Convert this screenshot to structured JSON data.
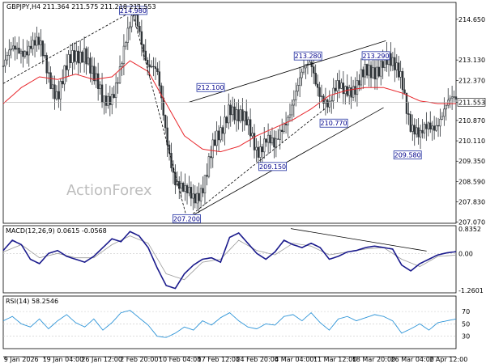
{
  "header": {
    "symbol_line": "GBPJPY,H4  211.364 211.575 211.218 211.553"
  },
  "watermark": "ActionForex",
  "colors": {
    "price": "#2f3438",
    "ma": "#e8262b",
    "macd": "#1a1a8c",
    "signal": "#9a9a9a",
    "rsi": "#2f95d8",
    "box_border": "#1f2fa0",
    "box_fill": "#ffffff",
    "current_bg": "#ffffff"
  },
  "chart_data": [
    {
      "type": "candlestick",
      "title": "GBPJPY,H4",
      "ohlc_last": {
        "open": 211.364,
        "high": 211.575,
        "low": 211.218,
        "close": 211.553
      },
      "x_tick_labels": [
        "9 Jan 2026",
        "19 Jan 04:00",
        "26 Jan 12:00",
        "2 Feb 20:00",
        "10 Feb 04:00",
        "17 Feb 12:00",
        "24 Feb 20:00",
        "4 Mar 04:00",
        "11 Mar 12:00",
        "18 Mar 20:00",
        "26 Mar 04:00",
        "2 Apr 12:00"
      ],
      "y_ticks": [
        214.65,
        213.13,
        212.37,
        211.553,
        210.87,
        210.11,
        209.35,
        208.59,
        207.83,
        207.07
      ],
      "y_tick_labels": [
        "214.650",
        "213.130",
        "212.370",
        "211.553",
        "210.870",
        "210.110",
        "209.350",
        "208.590",
        "207.830",
        "207.070"
      ],
      "ylim": [
        207.03,
        215.28
      ],
      "current_price": 211.553,
      "annotations": [
        {
          "text": "214.980",
          "x": 0.287,
          "y": 214.98
        },
        {
          "text": "212.100",
          "x": 0.458,
          "y": 212.1
        },
        {
          "text": "213.280",
          "x": 0.673,
          "y": 213.28
        },
        {
          "text": "213.290",
          "x": 0.823,
          "y": 213.29
        },
        {
          "text": "209.150",
          "x": 0.595,
          "y": 209.15
        },
        {
          "text": "210.770",
          "x": 0.73,
          "y": 210.77
        },
        {
          "text": "209.580",
          "x": 0.893,
          "y": 209.58
        },
        {
          "text": "207.200",
          "x": 0.405,
          "y": 207.2
        }
      ],
      "trendlines": [
        {
          "style": "dashed",
          "points": [
            [
              0.0,
              212.25
            ],
            [
              0.285,
              214.95
            ]
          ]
        },
        {
          "style": "dashed",
          "points": [
            [
              0.285,
              214.95
            ],
            [
              0.405,
              207.25
            ]
          ]
        },
        {
          "style": "solid",
          "points": [
            [
              0.405,
              207.2
            ],
            [
              0.84,
              211.35
            ]
          ]
        },
        {
          "style": "solid",
          "points": [
            [
              0.41,
              211.55
            ],
            [
              0.845,
              213.85
            ]
          ]
        },
        {
          "style": "dashed",
          "points": [
            [
              0.405,
              207.2
            ],
            [
              0.71,
              211.3
            ]
          ]
        }
      ],
      "series": [
        {
          "name": "close",
          "x": [
            0.0,
            0.02,
            0.04,
            0.06,
            0.08,
            0.1,
            0.12,
            0.14,
            0.16,
            0.18,
            0.2,
            0.22,
            0.24,
            0.26,
            0.28,
            0.29,
            0.3,
            0.32,
            0.34,
            0.36,
            0.38,
            0.4,
            0.42,
            0.44,
            0.46,
            0.48,
            0.5,
            0.52,
            0.54,
            0.56,
            0.58,
            0.6,
            0.62,
            0.64,
            0.66,
            0.68,
            0.7,
            0.72,
            0.74,
            0.76,
            0.78,
            0.8,
            0.82,
            0.84,
            0.86,
            0.88,
            0.9,
            0.92,
            0.94,
            0.96,
            0.98,
            1.0
          ],
          "y": [
            212.9,
            213.3,
            213.6,
            213.8,
            213.5,
            212.6,
            212.0,
            212.7,
            213.2,
            213.7,
            212.4,
            211.4,
            212.0,
            212.9,
            214.2,
            214.9,
            214.5,
            213.0,
            212.4,
            210.4,
            208.8,
            208.0,
            207.9,
            208.6,
            209.6,
            210.2,
            211.7,
            211.0,
            210.5,
            209.9,
            210.3,
            209.6,
            210.8,
            211.8,
            212.4,
            213.0,
            212.1,
            211.2,
            212.1,
            212.3,
            212.0,
            212.5,
            212.9,
            213.2,
            212.7,
            212.6,
            210.8,
            210.0,
            210.7,
            211.0,
            211.3,
            211.55
          ]
        },
        {
          "name": "ma",
          "x": [
            0.0,
            0.04,
            0.08,
            0.12,
            0.16,
            0.2,
            0.24,
            0.28,
            0.32,
            0.36,
            0.4,
            0.44,
            0.48,
            0.52,
            0.56,
            0.6,
            0.64,
            0.68,
            0.72,
            0.76,
            0.8,
            0.84,
            0.88,
            0.92,
            0.96,
            1.0
          ],
          "y": [
            211.5,
            212.1,
            212.5,
            212.4,
            212.6,
            212.4,
            212.5,
            213.1,
            212.7,
            211.5,
            210.3,
            209.8,
            209.7,
            209.9,
            210.3,
            210.6,
            210.9,
            211.3,
            211.8,
            212.0,
            212.1,
            212.1,
            211.9,
            211.6,
            211.5,
            211.5
          ]
        }
      ]
    },
    {
      "type": "line",
      "title": "MACD(12,26,9) 0.0615 -0.0568",
      "y_tick_labels": [
        "0.8352",
        "0.00",
        "-1.2601"
      ],
      "y_ticks": [
        0.8352,
        0.0,
        -1.2601
      ],
      "ylim": [
        -1.35,
        0.95
      ],
      "series": [
        {
          "name": "macd",
          "x": [
            0.0,
            0.02,
            0.04,
            0.06,
            0.08,
            0.1,
            0.12,
            0.14,
            0.16,
            0.18,
            0.2,
            0.22,
            0.24,
            0.26,
            0.28,
            0.3,
            0.32,
            0.34,
            0.36,
            0.38,
            0.4,
            0.42,
            0.44,
            0.46,
            0.48,
            0.5,
            0.52,
            0.54,
            0.56,
            0.58,
            0.6,
            0.62,
            0.64,
            0.66,
            0.68,
            0.7,
            0.72,
            0.74,
            0.76,
            0.78,
            0.8,
            0.82,
            0.84,
            0.86,
            0.88,
            0.9,
            0.92,
            0.94,
            0.96,
            0.98,
            1.0
          ],
          "y": [
            0.1,
            0.45,
            0.3,
            -0.2,
            -0.35,
            0.0,
            0.1,
            -0.1,
            -0.2,
            -0.3,
            -0.1,
            0.2,
            0.5,
            0.4,
            0.75,
            0.6,
            0.2,
            -0.5,
            -1.1,
            -1.2,
            -0.7,
            -0.4,
            -0.2,
            -0.15,
            -0.3,
            0.55,
            0.7,
            0.35,
            0.0,
            -0.2,
            0.05,
            0.45,
            0.3,
            0.2,
            0.35,
            0.2,
            -0.2,
            -0.1,
            0.05,
            0.1,
            0.2,
            0.25,
            0.2,
            0.15,
            -0.4,
            -0.6,
            -0.35,
            -0.2,
            -0.05,
            0.02,
            0.06
          ]
        },
        {
          "name": "signal",
          "x": [
            0.0,
            0.04,
            0.08,
            0.12,
            0.16,
            0.2,
            0.24,
            0.28,
            0.32,
            0.36,
            0.4,
            0.44,
            0.48,
            0.52,
            0.56,
            0.6,
            0.64,
            0.68,
            0.72,
            0.76,
            0.8,
            0.84,
            0.88,
            0.92,
            0.96,
            1.0
          ],
          "y": [
            0.05,
            0.3,
            -0.15,
            0.0,
            -0.15,
            -0.15,
            0.3,
            0.6,
            0.35,
            -0.7,
            -0.9,
            -0.3,
            -0.2,
            0.45,
            0.1,
            -0.05,
            0.35,
            0.25,
            -0.05,
            0.05,
            0.15,
            0.2,
            -0.2,
            -0.45,
            -0.1,
            -0.06
          ]
        }
      ],
      "trendlines": [
        {
          "style": "solid",
          "points": [
            [
              0.635,
              0.85
            ],
            [
              0.935,
              0.08
            ]
          ]
        }
      ]
    },
    {
      "type": "line",
      "title": "RSI(14) 58.2546",
      "y_tick_labels": [
        "70",
        "50",
        "30"
      ],
      "y_ticks": [
        70,
        50,
        30
      ],
      "ylim": [
        10,
        95
      ],
      "series": [
        {
          "name": "rsi",
          "x": [
            0.0,
            0.02,
            0.04,
            0.06,
            0.08,
            0.1,
            0.12,
            0.14,
            0.16,
            0.18,
            0.2,
            0.22,
            0.24,
            0.26,
            0.28,
            0.3,
            0.32,
            0.34,
            0.36,
            0.38,
            0.4,
            0.42,
            0.44,
            0.46,
            0.48,
            0.5,
            0.52,
            0.54,
            0.56,
            0.58,
            0.6,
            0.62,
            0.64,
            0.66,
            0.68,
            0.7,
            0.72,
            0.74,
            0.76,
            0.78,
            0.8,
            0.82,
            0.84,
            0.86,
            0.88,
            0.9,
            0.92,
            0.94,
            0.96,
            0.98,
            1.0
          ],
          "y": [
            55,
            62,
            50,
            45,
            58,
            42,
            55,
            65,
            52,
            45,
            58,
            40,
            52,
            68,
            72,
            60,
            48,
            30,
            28,
            35,
            45,
            40,
            55,
            48,
            60,
            68,
            55,
            45,
            42,
            50,
            48,
            62,
            65,
            55,
            68,
            52,
            40,
            58,
            62,
            55,
            60,
            65,
            62,
            55,
            35,
            42,
            50,
            40,
            52,
            55,
            58
          ]
        }
      ]
    }
  ]
}
